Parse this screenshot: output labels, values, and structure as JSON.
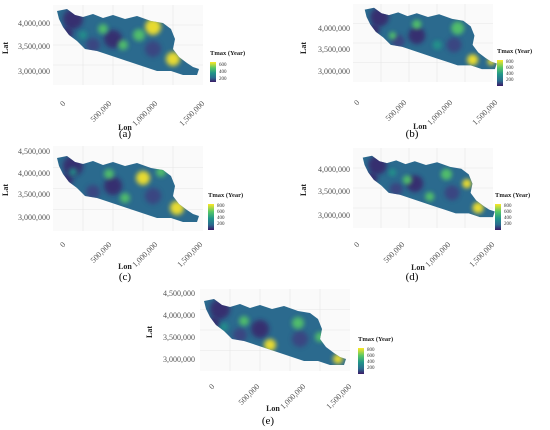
{
  "colors": {
    "low": "#3b1a66",
    "mid1": "#2b6a8e",
    "mid2": "#21958a",
    "high": "#55c667",
    "top": "#fde725",
    "grid": "#e6e6e6",
    "panel_bg": "#f6f6f6"
  },
  "panels": [
    {
      "label": "(a)",
      "y_ticks": [
        "4,000,000",
        "3,500,000",
        "3,000,000"
      ],
      "x_ticks": [
        "0",
        "500,000",
        "1,000,000",
        "1,500,000"
      ],
      "xlabel": "Lon",
      "ylabel": "Lat",
      "legend_title": "Tmax (Year)",
      "legend_values": [
        "600",
        "400",
        "200"
      ]
    },
    {
      "label": "(b)",
      "y_ticks": [
        "4,000,000",
        "3,500,000",
        "3,000,000"
      ],
      "x_ticks": [
        "0",
        "500,000",
        "1,000,000",
        "1,500,000"
      ],
      "xlabel": "Lon",
      "ylabel": "Lat",
      "legend_title": "Tmax (Year)",
      "legend_values": [
        "800",
        "600",
        "400",
        "200"
      ]
    },
    {
      "label": "(c)",
      "y_ticks": [
        "4,500,000",
        "4,000,000",
        "3,500,000",
        "3,000,000"
      ],
      "x_ticks": [
        "0",
        "500,000",
        "1,000,000",
        "1,500,000"
      ],
      "xlabel": "Lon",
      "ylabel": "Lat",
      "legend_title": "Tmax (Year)",
      "legend_values": [
        "800",
        "600",
        "400",
        "200"
      ]
    },
    {
      "label": "(d)",
      "y_ticks": [
        "4,000,000",
        "3,500,000",
        "3,000,000"
      ],
      "x_ticks": [
        "0",
        "500,000",
        "1,000,000",
        "1,500,000"
      ],
      "xlabel": "Lon",
      "ylabel": "Lat",
      "legend_title": "Tmax (Year)",
      "legend_values": [
        "800",
        "600",
        "400",
        "200"
      ]
    },
    {
      "label": "(e)",
      "y_ticks": [
        "4,500,000",
        "4,000,000",
        "3,500,000",
        "3,000,000"
      ],
      "x_ticks": [
        "0",
        "500,000",
        "1,000,000",
        "1,500,000"
      ],
      "xlabel": "Lon",
      "ylabel": "Lat",
      "legend_title": "Tmax (Year)",
      "legend_values": [
        "800",
        "600",
        "400",
        "200"
      ]
    }
  ]
}
